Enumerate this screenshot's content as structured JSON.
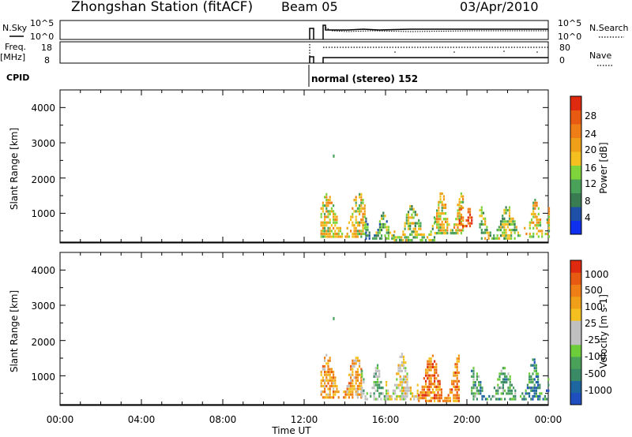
{
  "header": {
    "station": "Zhongshan Station (fitACF)",
    "beam": "Beam 05",
    "date": "03/Apr/2010"
  },
  "status_panels": {
    "nsky_label": "N.Sky",
    "nsky_ticks": [
      "10^5",
      "10^0"
    ],
    "nsearch_label": "N.Search",
    "nsearch_ticks": [
      "10^5",
      "10^0"
    ],
    "freq_label": "Freq.",
    "freq_unit": "[MHz]",
    "freq_ticks": [
      "18",
      "8"
    ],
    "nave_label": "Nave",
    "nave_ticks": [
      "80",
      "0"
    ],
    "cpid_label": "CPID",
    "cpid_value": "normal (stereo) 152",
    "cpid_start_hour": 12.0
  },
  "chart_data": [
    {
      "type": "heatmap",
      "name": "power",
      "ylabel": "Slant Range [km]",
      "y_ticks": [
        "4000",
        "3000",
        "2000",
        "1000"
      ],
      "y_tick_values": [
        4000,
        3000,
        2000,
        1000
      ],
      "ylim": [
        180,
        4500
      ],
      "xlim": [
        0,
        24
      ],
      "colorbar_label": "Power [dB]",
      "colorbar_ticks": [
        "28",
        "24",
        "20",
        "16",
        "12",
        "8",
        "4"
      ],
      "colorbar_colors": [
        "#1030f0",
        "#1e50a8",
        "#3a7c52",
        "#4aa25a",
        "#7ed43a",
        "#f4c020",
        "#f0a018",
        "#ef7e16",
        "#e85a12",
        "#e02a10"
      ],
      "clusters": [
        {
          "t0": 12.8,
          "t1": 15.0,
          "r0": 300,
          "r1": 1600,
          "level": 5
        },
        {
          "t0": 15.0,
          "t1": 16.4,
          "r0": 250,
          "r1": 1000,
          "level": 3
        },
        {
          "t0": 16.4,
          "t1": 18.4,
          "r0": 200,
          "r1": 1300,
          "level": 4
        },
        {
          "t0": 18.4,
          "t1": 19.8,
          "r0": 400,
          "r1": 1600,
          "level": 5
        },
        {
          "t0": 19.6,
          "t1": 20.2,
          "r0": 600,
          "r1": 1200,
          "level": 8
        },
        {
          "t0": 20.6,
          "t1": 22.6,
          "r0": 250,
          "r1": 1200,
          "level": 4
        },
        {
          "t0": 22.8,
          "t1": 24.0,
          "r0": 300,
          "r1": 1500,
          "level": 5
        }
      ],
      "isolated_points": [
        {
          "t": 13.45,
          "r": 2600
        }
      ]
    },
    {
      "type": "heatmap",
      "name": "velocity",
      "ylabel": "Slant Range [km]",
      "y_ticks": [
        "4000",
        "3000",
        "2000",
        "1000"
      ],
      "y_tick_values": [
        4000,
        3000,
        2000,
        1000
      ],
      "ylim": [
        180,
        4500
      ],
      "xlim": [
        0,
        24
      ],
      "colorbar_label": "Velocity [m s-1]",
      "colorbar_ticks": [
        "1000",
        "500",
        "100",
        "25",
        "-25",
        "-100",
        "-500",
        "-1000"
      ],
      "colorbar_colors": [
        "#1f4fbf",
        "#1e66a0",
        "#3a8a66",
        "#4aa25a",
        "#6ccc3a",
        "#c0c0c0",
        "#c0c0c0",
        "#f4c020",
        "#f0a018",
        "#ef7e16",
        "#e85a12",
        "#e02a10"
      ],
      "clusters": [
        {
          "t0": 12.8,
          "t1": 14.8,
          "r0": 350,
          "r1": 1600,
          "level": 8
        },
        {
          "t0": 14.8,
          "t1": 16.0,
          "r0": 300,
          "r1": 1300,
          "level": 4
        },
        {
          "t0": 16.0,
          "t1": 17.6,
          "r0": 300,
          "r1": 1600,
          "level": 6
        },
        {
          "t0": 17.6,
          "t1": 19.6,
          "r0": 250,
          "r1": 1600,
          "level": 9
        },
        {
          "t0": 20.2,
          "t1": 22.4,
          "r0": 300,
          "r1": 1200,
          "level": 3
        },
        {
          "t0": 22.6,
          "t1": 24.0,
          "r0": 300,
          "r1": 1500,
          "level": 2
        }
      ],
      "isolated_points": [
        {
          "t": 13.45,
          "r": 2600
        }
      ]
    }
  ],
  "x_axis": {
    "ticks": [
      "00:00",
      "04:00",
      "08:00",
      "12:00",
      "16:00",
      "20:00",
      "00:00"
    ],
    "tick_hours": [
      0,
      4,
      8,
      12,
      16,
      20,
      24
    ],
    "label": "Time UT"
  }
}
